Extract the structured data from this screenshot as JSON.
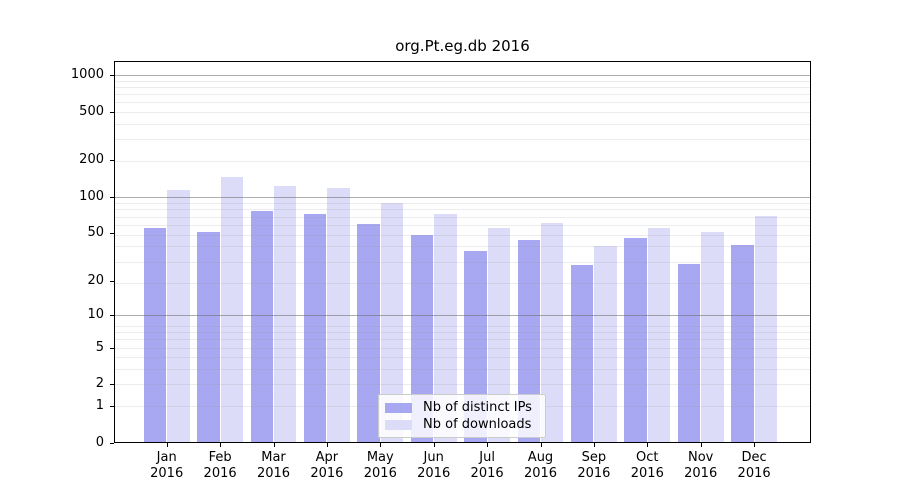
{
  "chart_data": {
    "type": "bar",
    "title": "org.Pt.eg.db 2016",
    "categories": [
      "Jan 2016",
      "Feb 2016",
      "Mar 2016",
      "Apr 2016",
      "May 2016",
      "Jun 2016",
      "Jul 2016",
      "Aug 2016",
      "Sep 2016",
      "Oct 2016",
      "Nov 2016",
      "Dec 2016"
    ],
    "series": [
      {
        "name": "Nb of distinct IPs",
        "color": "#a8a8f2",
        "values": [
          55,
          51,
          77,
          72,
          60,
          49,
          36,
          44,
          27,
          46,
          28,
          40
        ]
      },
      {
        "name": "Nb of downloads",
        "color": "#dcdcf8",
        "values": [
          115,
          145,
          124,
          118,
          90,
          73,
          55,
          61,
          39,
          56,
          51,
          70
        ]
      }
    ],
    "xlabel": "",
    "ylabel": "",
    "y_axis": {
      "scale": "log1p",
      "ticks": [
        0,
        1,
        2,
        5,
        10,
        20,
        50,
        100,
        200,
        500,
        1000
      ],
      "major_gridlines": [
        10,
        100,
        1000
      ],
      "ylim": [
        0,
        1300
      ]
    },
    "grid": "horizontal major + faint log minors",
    "legend_position": "inside-bottom-center"
  }
}
